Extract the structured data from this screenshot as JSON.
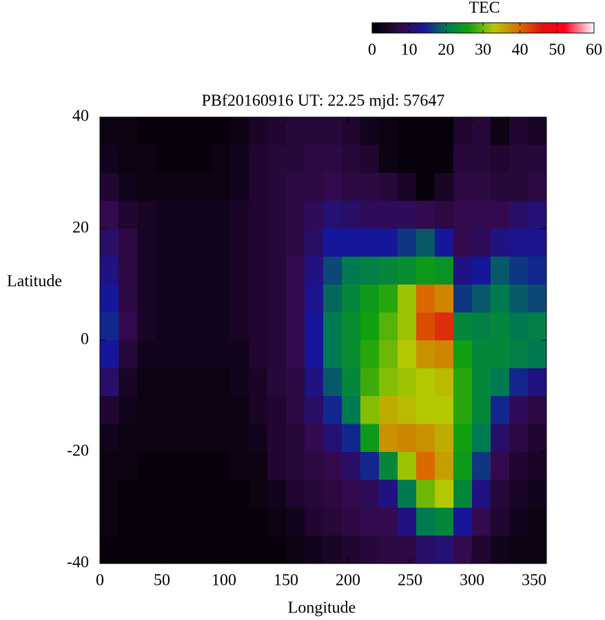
{
  "chart_data": {
    "type": "heatmap",
    "title": "PBf20160916  UT: 22.25  mjd: 57647",
    "x_label": "Longitude",
    "y_label": "Latitude",
    "x": [
      7.5,
      22.5,
      37.5,
      52.5,
      67.5,
      82.5,
      97.5,
      112.5,
      127.5,
      142.5,
      157.5,
      172.5,
      187.5,
      202.5,
      217.5,
      232.5,
      247.5,
      262.5,
      277.5,
      292.5,
      307.5,
      322.5,
      337.5,
      352.5
    ],
    "y": [
      37.5,
      32.5,
      27.5,
      22.5,
      17.5,
      12.5,
      7.5,
      2.5,
      -2.5,
      -7.5,
      -12.5,
      -17.5,
      -22.5,
      -27.5,
      -32.5,
      -37.5
    ],
    "z": [
      [
        2,
        2,
        1,
        1,
        1,
        1,
        1,
        2,
        4,
        5,
        6,
        6,
        6,
        5,
        3,
        2,
        1,
        1,
        1,
        5,
        6,
        2,
        5,
        4
      ],
      [
        3,
        2,
        2,
        1,
        1,
        1,
        2,
        3,
        5,
        6,
        6,
        7,
        7,
        6,
        5,
        2,
        1,
        1,
        1,
        6,
        6,
        5,
        6,
        6
      ],
      [
        5,
        3,
        2,
        2,
        2,
        2,
        2,
        3,
        5,
        6,
        7,
        7,
        8,
        7,
        7,
        6,
        4,
        1,
        4,
        7,
        7,
        6,
        6,
        7
      ],
      [
        8,
        5,
        4,
        3,
        3,
        3,
        3,
        4,
        5,
        6,
        7,
        9,
        11,
        10,
        9,
        9,
        9,
        8,
        7,
        8,
        8,
        8,
        10,
        11
      ],
      [
        10,
        7,
        4,
        3,
        3,
        3,
        3,
        4,
        5,
        6,
        7,
        10,
        14,
        14,
        14,
        14,
        16,
        18,
        14,
        8,
        9,
        12,
        13,
        13
      ],
      [
        12,
        7,
        4,
        3,
        3,
        3,
        3,
        4,
        5,
        6,
        8,
        12,
        17,
        20,
        21,
        22,
        23,
        25,
        24,
        12,
        14,
        18,
        16,
        15
      ],
      [
        14,
        7,
        4,
        3,
        3,
        3,
        3,
        4,
        5,
        6,
        8,
        13,
        19,
        22,
        25,
        27,
        32,
        40,
        38,
        16,
        18,
        20,
        18,
        17
      ],
      [
        15,
        8,
        4,
        3,
        3,
        3,
        3,
        4,
        5,
        6,
        8,
        14,
        20,
        23,
        26,
        29,
        32,
        42,
        44,
        22,
        21,
        22,
        20,
        21
      ],
      [
        14,
        6,
        3,
        3,
        3,
        3,
        3,
        3,
        5,
        6,
        8,
        14,
        20,
        23,
        27,
        30,
        33,
        37,
        38,
        26,
        22,
        22,
        21,
        20
      ],
      [
        10,
        4,
        2,
        2,
        2,
        2,
        2,
        3,
        4,
        6,
        7,
        12,
        18,
        22,
        28,
        31,
        32,
        33,
        34,
        27,
        22,
        20,
        15,
        12
      ],
      [
        5,
        3,
        2,
        2,
        2,
        2,
        2,
        2,
        4,
        5,
        7,
        10,
        15,
        20,
        31,
        35,
        34,
        33,
        33,
        27,
        22,
        15,
        9,
        7
      ],
      [
        3,
        2,
        2,
        2,
        2,
        2,
        2,
        2,
        3,
        5,
        6,
        8,
        11,
        15,
        25,
        37,
        38,
        37,
        35,
        26,
        20,
        10,
        7,
        5
      ],
      [
        2,
        2,
        1,
        1,
        1,
        1,
        1,
        2,
        2,
        5,
        6,
        7,
        8,
        10,
        15,
        22,
        32,
        40,
        36,
        25,
        16,
        8,
        5,
        4
      ],
      [
        2,
        1,
        1,
        1,
        1,
        1,
        1,
        1,
        2,
        3,
        5,
        6,
        7,
        8,
        9,
        12,
        20,
        30,
        33,
        22,
        12,
        6,
        4,
        3
      ],
      [
        2,
        1,
        1,
        1,
        1,
        1,
        1,
        1,
        1,
        2,
        3,
        5,
        6,
        7,
        8,
        8,
        12,
        20,
        22,
        14,
        8,
        5,
        3,
        2
      ],
      [
        1,
        1,
        1,
        1,
        1,
        1,
        1,
        1,
        1,
        1,
        2,
        3,
        4,
        5,
        6,
        7,
        7,
        10,
        11,
        8,
        5,
        3,
        2,
        2
      ]
    ],
    "xlim": [
      0,
      360
    ],
    "ylim": [
      -40,
      40
    ],
    "xticks": [
      0,
      50,
      100,
      150,
      200,
      250,
      300,
      350
    ],
    "yticks": [
      -40,
      -20,
      0,
      20,
      40
    ],
    "colorbar_title": "TEC",
    "zlim": [
      0,
      60
    ],
    "zticks": [
      0,
      10,
      20,
      30,
      40,
      50,
      60
    ],
    "colorscale": [
      [
        0,
        "#000000"
      ],
      [
        8,
        "#330a4d"
      ],
      [
        14,
        "#16169a"
      ],
      [
        20,
        "#007a50"
      ],
      [
        26,
        "#10a010"
      ],
      [
        33,
        "#b4c800"
      ],
      [
        40,
        "#d86a00"
      ],
      [
        46,
        "#e01010"
      ],
      [
        52,
        "#ff0020"
      ],
      [
        60,
        "#ffffff"
      ]
    ]
  }
}
